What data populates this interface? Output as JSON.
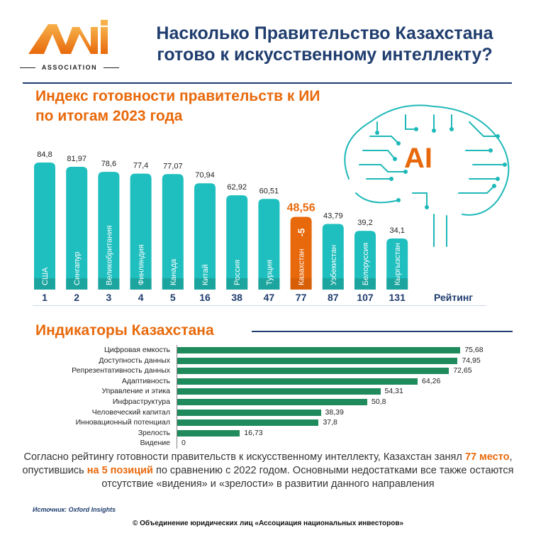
{
  "header": {
    "logo_text": "ASSOCIATION",
    "title_line1": "Насколько Правительство Казахстана",
    "title_line2": "готово к искусственному интеллекту?"
  },
  "colors": {
    "bar_teal": "#1fbfbf",
    "bar_highlight": "#e8690b",
    "indicator_green": "#1f8a5c",
    "navy": "#1f3d6e"
  },
  "brain": {
    "label": "AI"
  },
  "chart_data": [
    {
      "type": "bar",
      "title": "Индекс готовности правительств к ИИ по итогам 2023 года",
      "title_line1": "Индекс готовности правительств к ИИ",
      "title_line2": "по итогам 2023 года",
      "categories": [
        "США",
        "Сингапур",
        "Великобритания",
        "Финляндия",
        "Канада",
        "Китай",
        "Россия",
        "Турция",
        "Казахстан",
        "Узбекистан",
        "Белоруссия",
        "Кыргызстан"
      ],
      "values": [
        84.8,
        81.97,
        78.6,
        77.4,
        77.07,
        70.94,
        62.92,
        60.51,
        48.56,
        43.79,
        39.2,
        34.1
      ],
      "value_labels": [
        "84,8",
        "81,97",
        "78,6",
        "77,4",
        "77,07",
        "70,94",
        "62,92",
        "60,51",
        "48,56",
        "43,79",
        "39,2",
        "34,1"
      ],
      "ranks": [
        "1",
        "2",
        "3",
        "4",
        "5",
        "16",
        "38",
        "47",
        "77",
        "87",
        "107",
        "131"
      ],
      "rank_label": "Рейтинг",
      "highlight_index": 8,
      "highlight_change": "-5",
      "ylim": [
        0,
        90
      ]
    },
    {
      "type": "bar",
      "orientation": "horizontal",
      "title": "Индикаторы Казахстана",
      "categories": [
        "Цифровая емкость",
        "Доступность данных",
        "Репрезентативность данных",
        "Адаптивность",
        "Управление и этика",
        "Инфраструктура",
        "Человеческий капитал",
        "Инновационный потенциал",
        "Зрелость",
        "Видение"
      ],
      "values": [
        75.68,
        74.95,
        72.65,
        64.26,
        54.31,
        50.8,
        38.39,
        37.8,
        16.73,
        0
      ],
      "value_labels": [
        "75,68",
        "74,95",
        "72,65",
        "64,26",
        "54,31",
        "50,8",
        "38,39",
        "37,8",
        "16,73",
        "0"
      ],
      "xlim": [
        0,
        80
      ]
    }
  ],
  "paragraph": {
    "part1": "Согласно рейтингу готовности правительств к искусственному интеллекту, Казахстан занял ",
    "highlight1": "77 место",
    "part2": ", опустившись ",
    "highlight2": "на 5 позиций",
    "part3": " по сравнению с 2022 годом. Основными недостатками все также остаются отсутствие «видения» и «зрелости» в развитии данного направления"
  },
  "source": "Источник: Oxford Insights",
  "copyright": "© Объединение юридических лиц «Ассоциация национальных инвесторов»"
}
